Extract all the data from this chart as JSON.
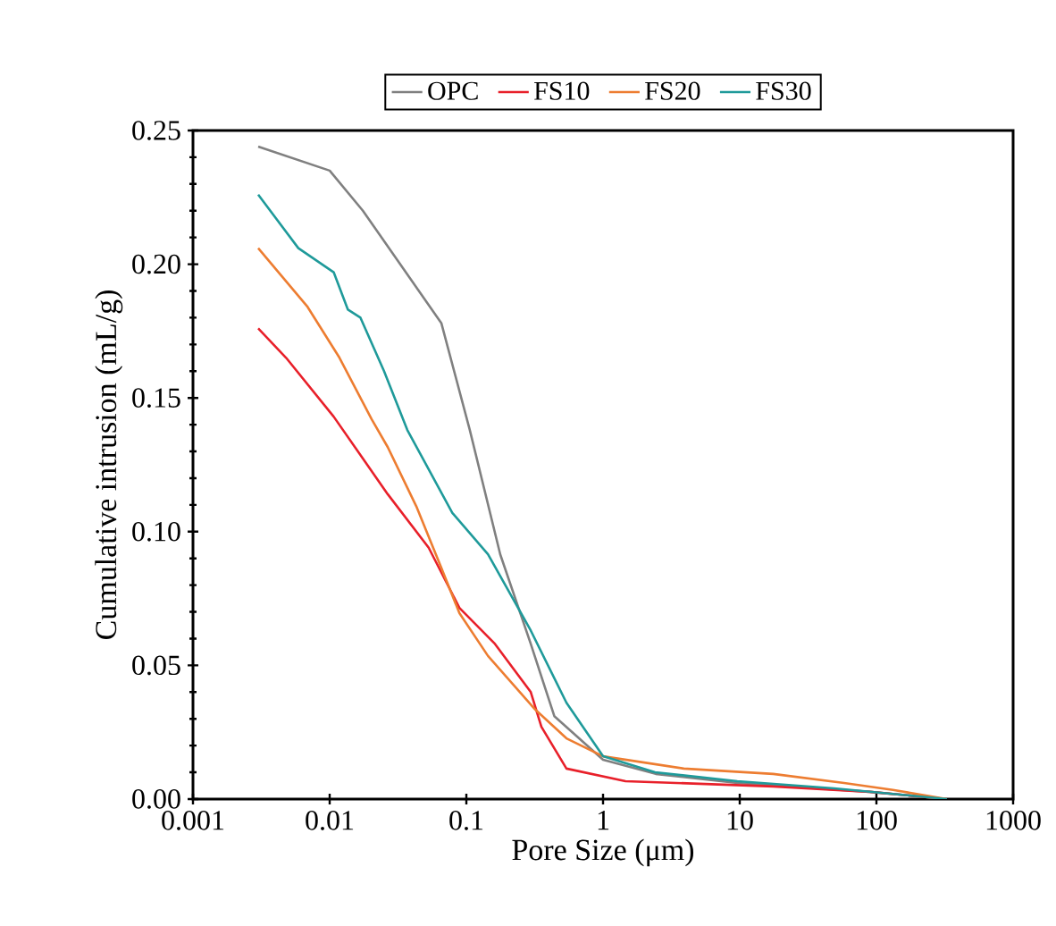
{
  "chart_data": {
    "type": "line",
    "xlabel": "Pore Size (μm)",
    "ylabel": "Cumulative intrusion (mL/g)",
    "log": "x",
    "legend": "top",
    "grid": false,
    "marker": "none",
    "line_style": "solid",
    "xlim": [
      0.001,
      1000
    ],
    "xticks": [
      0.001,
      0.01,
      0.1,
      1,
      10,
      100,
      1000
    ],
    "ylim": [
      0,
      0.25
    ],
    "yticks": [
      {
        "value": 0,
        "label": "0.00"
      },
      {
        "value": 0.05,
        "label": "0.05"
      },
      {
        "value": 0.1,
        "label": "0.10"
      },
      {
        "value": 0.15,
        "label": "0.15"
      },
      {
        "value": 0.2,
        "label": "0.20"
      },
      {
        "value": 0.25,
        "label": "0.25"
      }
    ],
    "series": [
      {
        "name": "OPC",
        "color": "#808080",
        "x": [
          0.003,
          0.01,
          0.0175,
          0.0656,
          0.106,
          0.177,
          0.296,
          0.44,
          1.0,
          2.43,
          9.6,
          89,
          328
        ],
        "values": [
          0.244,
          0.235,
          0.22,
          0.178,
          0.138,
          0.0915,
          0.058,
          0.031,
          0.0147,
          0.0094,
          0.006,
          0.0027,
          0
        ]
      },
      {
        "name": "FS10",
        "color": "#e8202a",
        "x": [
          0.003,
          0.0048,
          0.0107,
          0.0266,
          0.053,
          0.089,
          0.162,
          0.296,
          0.354,
          0.54,
          1.46,
          17.6,
          89,
          328
        ],
        "values": [
          0.176,
          0.165,
          0.143,
          0.114,
          0.094,
          0.0715,
          0.058,
          0.04,
          0.027,
          0.0114,
          0.0067,
          0.0047,
          0.0027,
          0
        ]
      },
      {
        "name": "FS20",
        "color": "#ed7d31",
        "x": [
          0.003,
          0.0069,
          0.0118,
          0.0203,
          0.0266,
          0.043,
          0.065,
          0.089,
          0.144,
          0.32,
          0.54,
          1.0,
          3.9,
          17.6,
          58,
          132,
          328
        ],
        "values": [
          0.206,
          0.184,
          0.165,
          0.142,
          0.1316,
          0.1095,
          0.087,
          0.0695,
          0.0535,
          0.0334,
          0.0227,
          0.016,
          0.0114,
          0.0094,
          0.006,
          0.0034,
          0
        ]
      },
      {
        "name": "FS30",
        "color": "#1f9a9a",
        "x": [
          0.003,
          0.0059,
          0.0107,
          0.0136,
          0.0168,
          0.025,
          0.037,
          0.079,
          0.144,
          0.296,
          0.54,
          1.0,
          2.4,
          9.6,
          49,
          328
        ],
        "values": [
          0.226,
          0.206,
          0.197,
          0.183,
          0.18,
          0.16,
          0.138,
          0.107,
          0.0915,
          0.063,
          0.036,
          0.016,
          0.01,
          0.0067,
          0.004,
          0
        ]
      }
    ]
  }
}
